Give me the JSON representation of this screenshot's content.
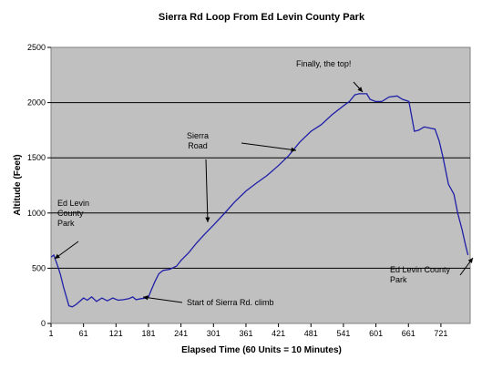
{
  "chart_data": {
    "type": "line",
    "title": "Sierra Rd Loop From Ed Levin County Park",
    "xlabel": "Elapsed Time (60 Units = 10 Minutes)",
    "ylabel": "Altitude (Feet)",
    "xlim": [
      1,
      775
    ],
    "ylim": [
      0,
      2500
    ],
    "x_ticks": [
      "1",
      "61",
      "121",
      "181",
      "241",
      "301",
      "361",
      "421",
      "481",
      "541",
      "601",
      "661",
      "721"
    ],
    "y_ticks": [
      "0",
      "500",
      "1000",
      "1500",
      "2000",
      "2500"
    ],
    "grid": "horizontal",
    "colors": {
      "line": "#1f1fa8",
      "plot_bg": "#c0c0c0",
      "border": "#808080"
    },
    "series": [
      {
        "values": [
          [
            1,
            600
          ],
          [
            6,
            620
          ],
          [
            12,
            540
          ],
          [
            18,
            450
          ],
          [
            24,
            330
          ],
          [
            30,
            230
          ],
          [
            34,
            160
          ],
          [
            40,
            150
          ],
          [
            47,
            170
          ],
          [
            54,
            200
          ],
          [
            61,
            230
          ],
          [
            68,
            210
          ],
          [
            76,
            240
          ],
          [
            85,
            200
          ],
          [
            95,
            230
          ],
          [
            105,
            205
          ],
          [
            115,
            230
          ],
          [
            125,
            210
          ],
          [
            135,
            215
          ],
          [
            145,
            225
          ],
          [
            152,
            240
          ],
          [
            158,
            215
          ],
          [
            168,
            225
          ],
          [
            178,
            230
          ],
          [
            181,
            240
          ],
          [
            186,
            300
          ],
          [
            193,
            380
          ],
          [
            200,
            450
          ],
          [
            208,
            480
          ],
          [
            220,
            490
          ],
          [
            233,
            520
          ],
          [
            241,
            570
          ],
          [
            255,
            640
          ],
          [
            270,
            730
          ],
          [
            285,
            810
          ],
          [
            301,
            890
          ],
          [
            320,
            990
          ],
          [
            340,
            1100
          ],
          [
            361,
            1200
          ],
          [
            380,
            1270
          ],
          [
            400,
            1340
          ],
          [
            421,
            1430
          ],
          [
            440,
            1520
          ],
          [
            460,
            1640
          ],
          [
            481,
            1740
          ],
          [
            500,
            1800
          ],
          [
            520,
            1890
          ],
          [
            541,
            1970
          ],
          [
            552,
            2010
          ],
          [
            562,
            2070
          ],
          [
            570,
            2080
          ],
          [
            584,
            2080
          ],
          [
            590,
            2030
          ],
          [
            600,
            2010
          ],
          [
            612,
            2010
          ],
          [
            625,
            2050
          ],
          [
            640,
            2060
          ],
          [
            650,
            2030
          ],
          [
            662,
            2010
          ],
          [
            672,
            1740
          ],
          [
            680,
            1750
          ],
          [
            690,
            1780
          ],
          [
            700,
            1770
          ],
          [
            710,
            1760
          ],
          [
            718,
            1650
          ],
          [
            725,
            1500
          ],
          [
            735,
            1260
          ],
          [
            745,
            1170
          ],
          [
            752,
            1000
          ],
          [
            760,
            850
          ],
          [
            767,
            700
          ],
          [
            771,
            620
          ]
        ]
      }
    ],
    "annotations": [
      {
        "text_lines": [
          "Finally, the top!"
        ]
      },
      {
        "text_lines": [
          "Sierra",
          "Road"
        ]
      },
      {
        "text_lines": [
          "Ed Levin",
          "County",
          "Park"
        ]
      },
      {
        "text_lines": [
          "Start of Sierra Rd. climb"
        ]
      },
      {
        "text_lines": [
          "Ed Levin County",
          "Park"
        ]
      }
    ]
  }
}
